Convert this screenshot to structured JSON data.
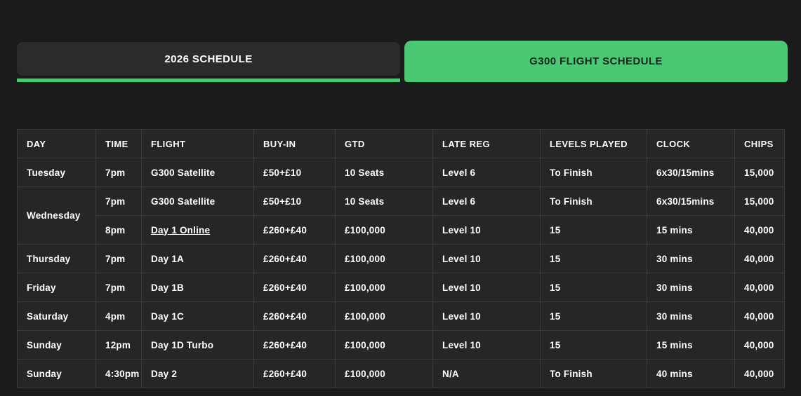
{
  "colors": {
    "accent_green": "#4ac873",
    "page_background": "#1b1b1b",
    "table_background": "#262626",
    "grid_line": "#3a3a3a",
    "inactive_tab_background": "#2b2b2b",
    "text": "#ffffff",
    "active_tab_text": "#14291c"
  },
  "tabs": [
    {
      "label": "2026 SCHEDULE",
      "active": false
    },
    {
      "label": "G300 FLIGHT SCHEDULE",
      "active": true
    }
  ],
  "table": {
    "columns": [
      "DAY",
      "TIME",
      "FLIGHT",
      "BUY-IN",
      "GTD",
      "LATE REG",
      "LEVELS PLAYED",
      "CLOCK",
      "CHIPS"
    ],
    "rows": [
      {
        "day": "Tuesday",
        "day_rowspan": 1,
        "time": "7pm",
        "flight": "G300 Satellite",
        "flight_link": false,
        "buy_in": "£50+£10",
        "gtd": "10 Seats",
        "late_reg": "Level 6",
        "levels_played": "To Finish",
        "clock": "6x30/15mins",
        "chips": "15,000"
      },
      {
        "day": "Wednesday",
        "day_rowspan": 2,
        "time": "7pm",
        "flight": "G300 Satellite",
        "flight_link": false,
        "buy_in": "£50+£10",
        "gtd": "10 Seats",
        "late_reg": "Level 6",
        "levels_played": "To Finish",
        "clock": "6x30/15mins",
        "chips": "15,000"
      },
      {
        "day": null,
        "day_rowspan": 0,
        "time": "8pm",
        "flight": "Day 1 Online",
        "flight_link": true,
        "buy_in": "£260+£40",
        "gtd": "£100,000",
        "late_reg": "Level 10",
        "levels_played": "15",
        "clock": "15 mins",
        "chips": "40,000"
      },
      {
        "day": "Thursday",
        "day_rowspan": 1,
        "time": "7pm",
        "flight": "Day 1A",
        "flight_link": false,
        "buy_in": "£260+£40",
        "gtd": "£100,000",
        "late_reg": "Level 10",
        "levels_played": "15",
        "clock": "30 mins",
        "chips": "40,000"
      },
      {
        "day": "Friday",
        "day_rowspan": 1,
        "time": "7pm",
        "flight": "Day 1B",
        "flight_link": false,
        "buy_in": "£260+£40",
        "gtd": "£100,000",
        "late_reg": "Level 10",
        "levels_played": "15",
        "clock": "30 mins",
        "chips": "40,000"
      },
      {
        "day": "Saturday",
        "day_rowspan": 1,
        "time": "4pm",
        "flight": "Day 1C",
        "flight_link": false,
        "buy_in": "£260+£40",
        "gtd": "£100,000",
        "late_reg": "Level 10",
        "levels_played": "15",
        "clock": "30 mins",
        "chips": "40,000"
      },
      {
        "day": "Sunday",
        "day_rowspan": 1,
        "time": "12pm",
        "flight": "Day 1D Turbo",
        "flight_link": false,
        "buy_in": "£260+£40",
        "gtd": "£100,000",
        "late_reg": "Level 10",
        "levels_played": "15",
        "clock": "15 mins",
        "chips": "40,000"
      },
      {
        "day": "Sunday",
        "day_rowspan": 1,
        "time": "4:30pm",
        "flight": "Day 2",
        "flight_link": false,
        "buy_in": "£260+£40",
        "gtd": "£100,000",
        "late_reg": "N/A",
        "levels_played": "To Finish",
        "clock": "40 mins",
        "chips": "40,000"
      }
    ]
  }
}
